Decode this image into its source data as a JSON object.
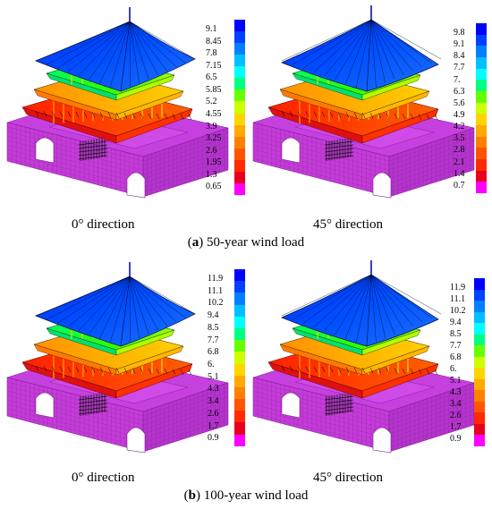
{
  "colormap": [
    "#ff00ff",
    "#e8001e",
    "#ff2a00",
    "#ff5500",
    "#ff8000",
    "#ffaa00",
    "#ffd500",
    "#ccff00",
    "#66ff00",
    "#00ff80",
    "#00ffff",
    "#00bfff",
    "#0080ff",
    "#0040ff",
    "#0000ff"
  ],
  "model_colors": {
    "base": "#c640e0",
    "base_dark": "#a030c0",
    "mesh": "#7a1a90"
  },
  "panels": [
    {
      "id": "a-0",
      "direction_label": "0° direction",
      "ticks": [
        "9.1",
        "8.45",
        "7.8",
        "7.15",
        "6.5",
        "5.85",
        "5.2",
        "4.55",
        "3.9",
        "3.25",
        "2.6",
        "1.95",
        "1.3",
        "0.65"
      ]
    },
    {
      "id": "a-45",
      "direction_label": "45° direction",
      "ticks": [
        "9.8",
        "9.1",
        "8.4",
        "7.7",
        "7.",
        "6.3",
        "5.6",
        "4.9",
        "4.2",
        "3.5",
        "2.8",
        "2.1",
        "1.4",
        "0.7"
      ]
    },
    {
      "id": "b-0",
      "direction_label": "0° direction",
      "ticks": [
        "11.9",
        "11.1",
        "10.2",
        "9.4",
        "8.5",
        "7.7",
        "6.8",
        "6.",
        "5.1",
        "4.3",
        "3.4",
        "2.6",
        "1.7",
        "0.9"
      ]
    },
    {
      "id": "b-45",
      "direction_label": "45° direction",
      "ticks": [
        "11.9",
        "11.1",
        "10.2",
        "9.4",
        "8.5",
        "7.7",
        "6.8",
        "6.",
        "5.1",
        "4.3",
        "3.4",
        "2.6",
        "1.7",
        "0.9"
      ]
    }
  ],
  "captions": {
    "a": {
      "letter": "a",
      "text": " 50-year wind load"
    },
    "b": {
      "letter": "b",
      "text": " 100-year wind load"
    }
  }
}
